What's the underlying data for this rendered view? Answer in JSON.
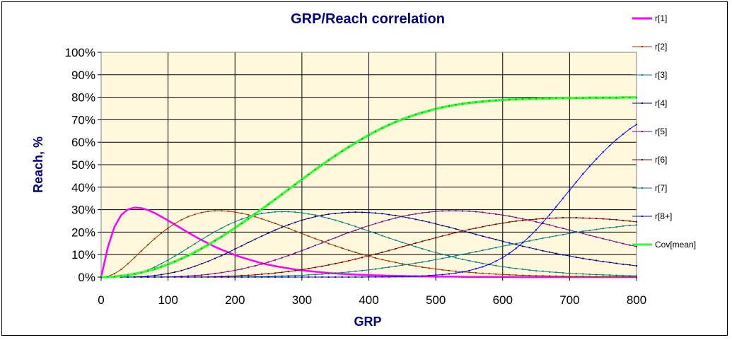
{
  "chart_data": {
    "type": "line",
    "title": "GRP/Reach  correlation",
    "xlabel": "GRP",
    "ylabel": "Reach, %",
    "xlim": [
      0,
      800
    ],
    "ylim": [
      0,
      100
    ],
    "xticks": [
      "0",
      "100",
      "200",
      "300",
      "400",
      "500",
      "600",
      "700",
      "800"
    ],
    "yticks": [
      "0%",
      "10%",
      "20%",
      "30%",
      "40%",
      "50%",
      "60%",
      "70%",
      "80%",
      "90%",
      "100%"
    ],
    "grid": true,
    "background": "#FFF8DC",
    "legend_position": "right",
    "x": [
      0,
      10,
      20,
      30,
      40,
      50,
      60,
      70,
      80,
      90,
      100,
      110,
      120,
      130,
      140,
      150,
      160,
      170,
      180,
      190,
      200,
      210,
      220,
      230,
      240,
      250,
      260,
      270,
      280,
      290,
      300,
      310,
      320,
      330,
      340,
      350,
      360,
      370,
      380,
      390,
      400,
      410,
      420,
      430,
      440,
      450,
      460,
      470,
      480,
      490,
      500,
      510,
      520,
      530,
      540,
      550,
      560,
      570,
      580,
      590,
      600,
      610,
      620,
      630,
      640,
      650,
      660,
      670,
      680,
      690,
      700,
      710,
      720,
      730,
      740,
      750,
      760,
      770,
      780,
      790,
      800
    ],
    "series": [
      {
        "name": "r[1]",
        "color": "#FF00FF",
        "values": [
          0.0,
          13.3,
          22.4,
          27.6,
          30.1,
          30.9,
          30.7,
          29.8,
          28.5,
          26.9,
          25.2,
          23.4,
          21.6,
          19.8,
          18.1,
          16.5,
          15.0,
          13.5,
          12.2,
          11.0,
          9.8,
          8.8,
          7.9,
          7.0,
          6.2,
          5.5,
          4.9,
          4.4,
          3.9,
          3.4,
          3.0,
          2.7,
          2.4,
          2.1,
          1.8,
          1.6,
          1.4,
          1.3,
          1.1,
          1.0,
          0.9,
          0.8,
          0.7,
          0.6,
          0.5,
          0.5,
          0.4,
          0.4,
          0.3,
          0.3,
          0.2,
          0.2,
          0.2,
          0.2,
          0.1,
          0.1,
          0.1,
          0.1,
          0.1,
          0.1,
          0.1,
          0.1,
          0.0,
          0.0,
          0.0,
          0.0,
          0.0,
          0.0,
          0.0,
          0.0,
          0.0,
          0.0,
          0.0,
          0.0,
          0.0,
          0.0,
          0.0,
          0.0,
          0.0,
          0.0,
          0.0
        ]
      },
      {
        "name": "r[2]",
        "color": "#993300",
        "values": [
          0.0,
          0.3,
          1.5,
          3.4,
          5.9,
          8.7,
          11.6,
          14.4,
          17.1,
          19.6,
          21.8,
          23.8,
          25.5,
          26.9,
          27.9,
          28.7,
          29.2,
          29.5,
          29.5,
          29.3,
          28.9,
          28.4,
          27.7,
          26.9,
          25.9,
          24.9,
          23.9,
          22.8,
          21.7,
          20.5,
          19.4,
          18.2,
          17.1,
          16.0,
          14.9,
          13.9,
          12.9,
          11.9,
          11.0,
          10.1,
          9.3,
          8.5,
          7.8,
          7.1,
          6.5,
          5.9,
          5.4,
          4.9,
          4.4,
          4.0,
          3.6,
          3.2,
          2.9,
          2.6,
          2.3,
          2.1,
          1.9,
          1.7,
          1.5,
          1.3,
          1.2,
          1.0,
          0.9,
          0.8,
          0.7,
          0.6,
          0.6,
          0.5,
          0.4,
          0.4,
          0.3,
          0.3,
          0.3,
          0.2,
          0.2,
          0.2,
          0.2,
          0.1,
          0.1,
          0.1,
          0.1
        ]
      },
      {
        "name": "r[3]",
        "color": "#008080",
        "values": [
          0.0,
          0.0,
          0.1,
          0.3,
          0.7,
          1.3,
          2.1,
          3.2,
          4.5,
          6.0,
          7.6,
          9.3,
          11.1,
          13.0,
          14.8,
          16.7,
          18.5,
          20.2,
          21.8,
          23.3,
          24.6,
          25.8,
          26.8,
          27.6,
          28.3,
          28.7,
          29.0,
          29.1,
          29.1,
          28.9,
          28.6,
          28.1,
          27.6,
          26.9,
          26.1,
          25.3,
          24.4,
          23.5,
          22.5,
          21.5,
          20.5,
          19.5,
          18.4,
          17.4,
          16.4,
          15.4,
          14.5,
          13.5,
          12.6,
          11.7,
          10.9,
          10.1,
          9.4,
          8.6,
          7.9,
          7.3,
          6.7,
          6.1,
          5.6,
          5.1,
          4.6,
          4.2,
          3.8,
          3.5,
          3.1,
          2.8,
          2.6,
          2.3,
          2.1,
          1.9,
          1.7,
          1.5,
          1.4,
          1.2,
          1.1,
          1.0,
          0.9,
          0.8,
          0.7,
          0.6,
          0.6
        ]
      },
      {
        "name": "r[4]",
        "color": "#000080",
        "values": [
          0.0,
          0.0,
          0.0,
          0.0,
          0.0,
          0.1,
          0.2,
          0.4,
          0.7,
          1.1,
          1.6,
          2.2,
          2.9,
          3.8,
          4.8,
          5.9,
          7.0,
          8.3,
          9.6,
          11.0,
          12.5,
          13.9,
          15.4,
          16.8,
          18.2,
          19.6,
          20.9,
          22.1,
          23.3,
          24.3,
          25.3,
          26.1,
          26.9,
          27.5,
          28.0,
          28.3,
          28.6,
          28.8,
          28.9,
          28.8,
          28.7,
          28.5,
          28.2,
          27.8,
          27.4,
          26.9,
          26.3,
          25.7,
          25.1,
          24.4,
          23.7,
          22.9,
          22.2,
          21.4,
          20.6,
          19.8,
          19.0,
          18.2,
          17.5,
          16.7,
          15.9,
          15.2,
          14.5,
          13.7,
          13.1,
          12.4,
          11.7,
          11.1,
          10.5,
          9.9,
          9.4,
          8.8,
          8.3,
          7.8,
          7.4,
          6.9,
          6.5,
          6.1,
          5.7,
          5.4,
          5.0
        ]
      },
      {
        "name": "r[5]",
        "color": "#800080",
        "values": [
          0.0,
          0.0,
          0.0,
          0.0,
          0.0,
          0.0,
          0.0,
          0.0,
          0.0,
          0.1,
          0.1,
          0.2,
          0.3,
          0.5,
          0.7,
          0.9,
          1.2,
          1.6,
          2.0,
          2.5,
          3.0,
          3.6,
          4.3,
          5.0,
          5.8,
          6.7,
          7.6,
          8.6,
          9.6,
          10.7,
          11.8,
          12.9,
          14.1,
          15.2,
          16.4,
          17.5,
          18.7,
          19.8,
          20.8,
          21.9,
          22.9,
          23.8,
          24.7,
          25.5,
          26.3,
          27.0,
          27.6,
          28.1,
          28.6,
          28.9,
          29.2,
          29.4,
          29.5,
          29.5,
          29.4,
          29.3,
          29.1,
          28.8,
          28.4,
          28.0,
          27.6,
          27.1,
          26.5,
          25.9,
          25.3,
          24.6,
          23.9,
          23.2,
          22.4,
          21.7,
          20.9,
          20.1,
          19.4,
          18.6,
          17.8,
          17.1,
          16.4,
          15.6,
          14.9,
          14.2,
          13.6
        ]
      },
      {
        "name": "r[6]",
        "color": "#800000",
        "values": [
          0.0,
          0.0,
          0.0,
          0.0,
          0.0,
          0.0,
          0.0,
          0.0,
          0.0,
          0.0,
          0.0,
          0.0,
          0.0,
          0.0,
          0.1,
          0.1,
          0.1,
          0.2,
          0.3,
          0.4,
          0.5,
          0.7,
          0.8,
          1.0,
          1.3,
          1.5,
          1.8,
          2.1,
          2.5,
          2.9,
          3.3,
          3.8,
          4.3,
          4.8,
          5.4,
          6.0,
          6.6,
          7.3,
          8.0,
          8.7,
          9.5,
          10.2,
          11.0,
          11.8,
          12.6,
          13.5,
          14.3,
          15.1,
          15.9,
          16.7,
          17.5,
          18.3,
          19.0,
          19.8,
          20.5,
          21.2,
          21.8,
          22.4,
          23.0,
          23.5,
          24.0,
          24.5,
          24.9,
          25.2,
          25.5,
          25.8,
          26.0,
          26.2,
          26.3,
          26.4,
          26.4,
          26.4,
          26.3,
          26.2,
          26.1,
          25.9,
          25.7,
          25.5,
          25.2,
          24.9,
          24.6
        ]
      },
      {
        "name": "r[7]",
        "color": "#008080",
        "values": [
          0.0,
          0.0,
          0.0,
          0.0,
          0.0,
          0.0,
          0.0,
          0.0,
          0.0,
          0.0,
          0.0,
          0.0,
          0.0,
          0.0,
          0.0,
          0.0,
          0.0,
          0.0,
          0.0,
          0.1,
          0.1,
          0.1,
          0.1,
          0.2,
          0.2,
          0.3,
          0.4,
          0.5,
          0.6,
          0.7,
          0.8,
          1.0,
          1.1,
          1.3,
          1.5,
          1.8,
          2.0,
          2.3,
          2.6,
          2.9,
          3.2,
          3.6,
          4.0,
          4.4,
          4.8,
          5.3,
          5.7,
          6.2,
          6.7,
          7.2,
          7.8,
          8.3,
          8.9,
          9.5,
          10.1,
          10.7,
          11.3,
          11.9,
          12.5,
          13.1,
          13.7,
          14.3,
          14.9,
          15.5,
          16.1,
          16.7,
          17.3,
          17.8,
          18.4,
          18.9,
          19.4,
          19.9,
          20.4,
          20.8,
          21.2,
          21.6,
          22.0,
          22.3,
          22.7,
          23.0,
          23.2
        ]
      },
      {
        "name": "r[8+]",
        "color": "#0000FF",
        "values": [
          0.0,
          0.0,
          0.0,
          0.0,
          0.0,
          0.0,
          0.0,
          0.0,
          0.0,
          0.0,
          0.0,
          0.0,
          0.0,
          0.0,
          0.0,
          0.0,
          0.0,
          0.0,
          0.0,
          0.0,
          0.0,
          0.0,
          0.0,
          0.0,
          0.0,
          0.0,
          0.0,
          0.0,
          0.0,
          0.0,
          0.0,
          0.0,
          0.0,
          0.0,
          0.0,
          0.0,
          0.0,
          0.0,
          0.0,
          0.0,
          0.1,
          0.1,
          0.1,
          0.1,
          0.2,
          0.2,
          0.3,
          0.4,
          0.5,
          0.7,
          0.9,
          1.1,
          1.4,
          1.8,
          2.3,
          2.9,
          3.7,
          4.6,
          5.7,
          7.1,
          8.7,
          10.6,
          12.8,
          15.3,
          18.0,
          21.0,
          24.3,
          27.7,
          31.3,
          35.0,
          38.7,
          42.3,
          45.9,
          49.3,
          52.5,
          55.6,
          58.5,
          61.2,
          63.6,
          65.9,
          67.9
        ]
      },
      {
        "name": "Cov[mean]",
        "color": "#33FF33",
        "values": [
          0.0,
          0.1,
          0.2,
          0.5,
          0.9,
          1.4,
          2.0,
          2.8,
          3.6,
          4.6,
          5.7,
          6.9,
          8.2,
          9.6,
          11.1,
          12.7,
          14.4,
          16.2,
          18.0,
          19.9,
          21.9,
          23.9,
          26.0,
          28.1,
          30.2,
          32.4,
          34.6,
          36.8,
          39.0,
          41.2,
          43.4,
          45.6,
          47.8,
          49.9,
          52.0,
          54.0,
          56.0,
          57.9,
          59.7,
          61.5,
          63.2,
          64.8,
          66.3,
          67.7,
          69.0,
          70.2,
          71.3,
          72.3,
          73.2,
          74.0,
          74.8,
          75.5,
          76.1,
          76.6,
          77.1,
          77.5,
          77.8,
          78.1,
          78.4,
          78.6,
          78.8,
          79.0,
          79.1,
          79.2,
          79.3,
          79.4,
          79.5,
          79.5,
          79.6,
          79.6,
          79.7,
          79.7,
          79.7,
          79.8,
          79.8,
          79.8,
          79.8,
          79.8,
          79.9,
          79.9,
          79.9
        ]
      }
    ]
  }
}
